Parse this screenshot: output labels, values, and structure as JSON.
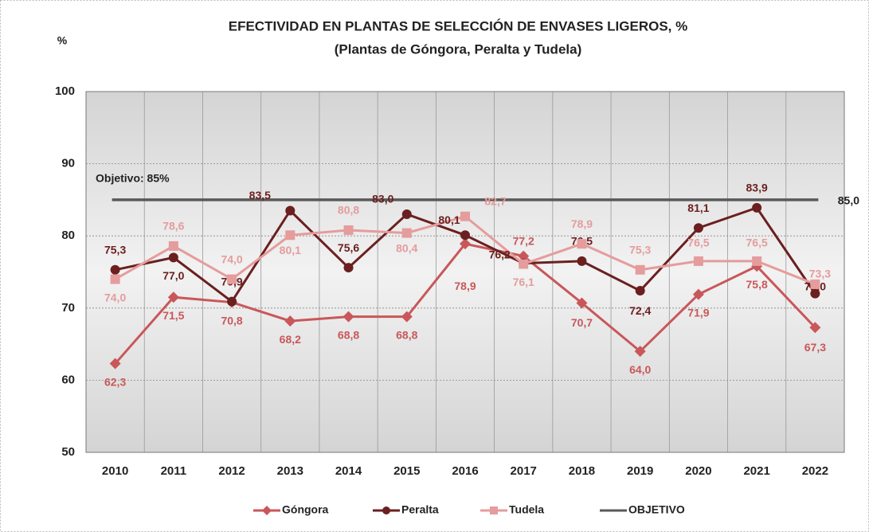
{
  "chart_data": {
    "type": "line",
    "title": "EFECTIVIDAD EN PLANTAS DE SELECCIÓN DE ENVASES LIGEROS, %",
    "subtitle": "(Plantas de Góngora, Peralta y Tudela)",
    "y_label": "%",
    "annotation": "Objetivo: 85%",
    "categories": [
      "2010",
      "2011",
      "2012",
      "2013",
      "2014",
      "2015",
      "2016",
      "2017",
      "2018",
      "2019",
      "2020",
      "2021",
      "2022"
    ],
    "ylim": [
      50,
      100
    ],
    "yticks": [
      50,
      60,
      70,
      80,
      90,
      100
    ],
    "grid": true,
    "legend": "bottom",
    "series": [
      {
        "name": "Góngora",
        "color": "#c9575a",
        "marker": "diamond",
        "values": [
          62.3,
          71.5,
          70.8,
          68.2,
          68.8,
          68.8,
          78.9,
          77.2,
          70.7,
          64.0,
          71.9,
          75.8,
          67.3
        ],
        "value_labels": [
          "62,3",
          "71,5",
          "70,8",
          "68,2",
          "68,8",
          "68,8",
          "78,9",
          "77,2",
          "70,7",
          "64,0",
          "71,9",
          "75,8",
          "67,3"
        ]
      },
      {
        "name": "Peralta",
        "color": "#6b1f1f",
        "marker": "circle",
        "values": [
          75.3,
          77.0,
          70.9,
          83.5,
          75.6,
          83.0,
          80.1,
          76.2,
          76.5,
          72.4,
          81.1,
          83.9,
          72.0
        ],
        "value_labels": [
          "75,3",
          "77,0",
          "70,9",
          "83,5",
          "75,6",
          "83,0",
          "80,1",
          "76,2",
          "76,5",
          "72,4",
          "81,1",
          "83,9",
          "72,0"
        ]
      },
      {
        "name": "Tudela",
        "color": "#e59c9c",
        "marker": "square",
        "values": [
          74.0,
          78.6,
          74.0,
          80.1,
          80.8,
          80.4,
          82.7,
          76.1,
          78.9,
          75.3,
          76.5,
          76.5,
          73.3
        ],
        "value_labels": [
          "74,0",
          "78,6",
          "74,0",
          "80,1",
          "80,8",
          "80,4",
          "82,7",
          "76,1",
          "78,9",
          "75,3",
          "76,5",
          "76,5",
          "73,3"
        ]
      },
      {
        "name": "OBJETIVO",
        "color": "#595959",
        "marker": "none",
        "values": [
          85,
          85,
          85,
          85,
          85,
          85,
          85,
          85,
          85,
          85,
          85,
          85,
          85
        ],
        "value_labels": [
          null,
          null,
          null,
          null,
          null,
          null,
          null,
          null,
          null,
          null,
          null,
          null,
          "85,0"
        ]
      }
    ]
  }
}
